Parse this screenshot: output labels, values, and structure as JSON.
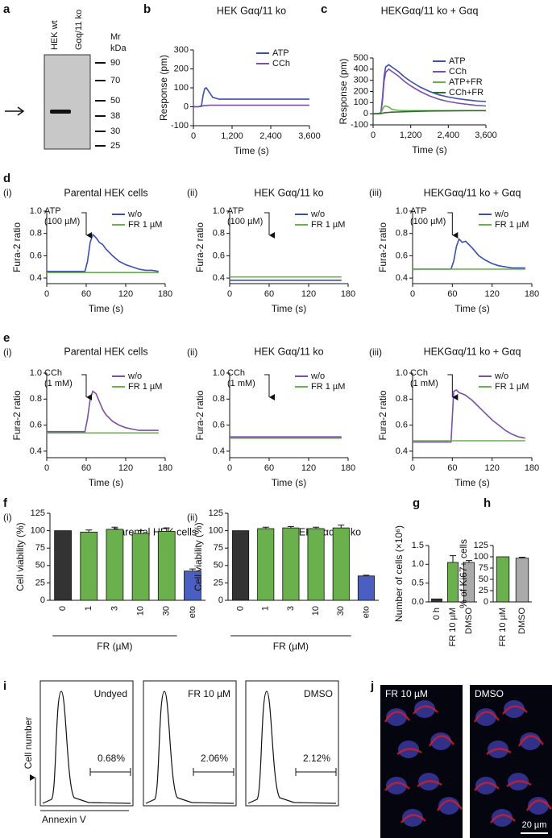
{
  "blot": {
    "panel": "a",
    "lanes": [
      "HEK wt",
      "Gαq/11 ko"
    ],
    "marker_title": [
      "Mr",
      "kDa"
    ],
    "markers": [
      90,
      70,
      50,
      38,
      30,
      25
    ]
  },
  "chart_data": [
    {
      "type": "line",
      "panel": "b",
      "title": "HEK Gαq/11 ko",
      "x_label": "Time (s)",
      "y_label": "Response (pm)",
      "x": [
        0,
        150,
        250,
        300,
        350,
        400,
        500,
        600,
        800,
        1000,
        1200,
        1500,
        1800,
        2100,
        2400,
        2700,
        3000,
        3300,
        3600
      ],
      "xlim": [
        0,
        3600
      ],
      "xticks": [
        0,
        {
          "value": 1200,
          "label": "1,200"
        },
        {
          "value": 2400,
          "label": "2,400"
        },
        {
          "value": 3600,
          "label": "3,600"
        }
      ],
      "ylim": [
        -100,
        300
      ],
      "yticks": [
        -100,
        0,
        100,
        200,
        300
      ],
      "legend": "upper right",
      "series": [
        {
          "name": "ATP",
          "color": "#3a4fb0",
          "values": [
            0,
            0,
            5,
            60,
            95,
            100,
            75,
            50,
            40,
            40,
            40,
            40,
            40,
            40,
            40,
            40,
            40,
            40,
            40
          ]
        },
        {
          "name": "CCh",
          "color": "#7b4fa8",
          "values": [
            0,
            0,
            2,
            5,
            6,
            7,
            8,
            8,
            8,
            8,
            8,
            8,
            8,
            8,
            8,
            8,
            8,
            8,
            8
          ]
        }
      ]
    },
    {
      "type": "line",
      "panel": "c",
      "title": "HEKGαq/11 ko + Gαq",
      "x_label": "Time (s)",
      "y_label": "Response (pm)",
      "x": [
        0,
        150,
        250,
        300,
        350,
        400,
        500,
        600,
        800,
        1000,
        1200,
        1500,
        1800,
        2100,
        2400,
        2700,
        3000,
        3300,
        3600
      ],
      "xlim": [
        0,
        3600
      ],
      "xticks": [
        0,
        {
          "value": 1200,
          "label": "1,200"
        },
        {
          "value": 2400,
          "label": "2,400"
        },
        {
          "value": 3600,
          "label": "3,600"
        }
      ],
      "ylim": [
        -100,
        500
      ],
      "yticks": [
        -100,
        0,
        100,
        200,
        300,
        400,
        500
      ],
      "legend": "upper right",
      "series": [
        {
          "name": "ATP",
          "color": "#3a4fb0",
          "values": [
            0,
            0,
            10,
            150,
            330,
            420,
            440,
            420,
            380,
            330,
            290,
            240,
            200,
            170,
            150,
            135,
            125,
            115,
            110
          ]
        },
        {
          "name": "CCh",
          "color": "#7b4fa8",
          "values": [
            0,
            0,
            8,
            120,
            290,
            370,
            400,
            380,
            340,
            290,
            250,
            200,
            160,
            130,
            110,
            95,
            85,
            75,
            70
          ]
        },
        {
          "name": "ATP+FR",
          "color": "#6ab04c",
          "values": [
            0,
            0,
            5,
            40,
            65,
            70,
            60,
            40,
            30,
            28,
            28,
            28,
            28,
            28,
            28,
            28,
            28,
            28,
            28
          ]
        },
        {
          "name": "CCh+FR",
          "color": "#2e6b2e",
          "values": [
            0,
            0,
            2,
            5,
            8,
            10,
            12,
            14,
            16,
            18,
            20,
            22,
            24,
            25,
            26,
            27,
            28,
            28,
            28
          ]
        }
      ]
    },
    {
      "type": "line",
      "panel": "d",
      "subpanel": "(i)",
      "title": "Parental HEK cells",
      "x_label": "Time (s)",
      "y_label": "Fura-2 ratio",
      "annotation": [
        "ATP",
        "(100 µM)"
      ],
      "x": [
        0,
        10,
        20,
        30,
        40,
        50,
        58,
        62,
        66,
        70,
        75,
        80,
        85,
        90,
        100,
        110,
        120,
        130,
        140,
        150,
        160,
        170
      ],
      "xlim": [
        0,
        180
      ],
      "xticks": [
        0,
        60,
        120,
        180
      ],
      "ylim": [
        0.35,
        1.0
      ],
      "yticks": [
        0.4,
        0.6,
        0.8,
        {
          "value": 1,
          "label": "1.0"
        }
      ],
      "legend": "upper right",
      "series": [
        {
          "name": "w/o",
          "color": "#3a4fb0",
          "values": [
            0.46,
            0.46,
            0.46,
            0.46,
            0.46,
            0.46,
            0.46,
            0.55,
            0.72,
            0.79,
            0.76,
            0.72,
            0.7,
            0.66,
            0.6,
            0.55,
            0.52,
            0.5,
            0.48,
            0.47,
            0.47,
            0.46
          ]
        },
        {
          "name": "FR 1 µM",
          "color": "#6ab04c",
          "values": [
            0.45,
            0.45,
            0.45,
            0.45,
            0.45,
            0.45,
            0.45,
            0.45,
            0.45,
            0.45,
            0.45,
            0.45,
            0.45,
            0.45,
            0.45,
            0.45,
            0.45,
            0.45,
            0.45,
            0.45,
            0.45,
            0.45
          ]
        }
      ]
    },
    {
      "type": "line",
      "subpanel": "(ii)",
      "title": "HEK Gαq/11 ko",
      "x_label": "Time (s)",
      "y_label": "Fura-2 ratio",
      "annotation": [
        "ATP",
        "(100 µM)"
      ],
      "x": [
        0,
        10,
        20,
        30,
        40,
        50,
        58,
        62,
        66,
        70,
        75,
        80,
        85,
        90,
        100,
        110,
        120,
        130,
        140,
        150,
        160,
        170
      ],
      "xlim": [
        0,
        180
      ],
      "xticks": [
        0,
        60,
        120,
        180
      ],
      "ylim": [
        0.35,
        1.0
      ],
      "yticks": [
        0.4,
        0.6,
        0.8,
        {
          "value": 1,
          "label": "1.0"
        }
      ],
      "legend": "upper right",
      "series": [
        {
          "name": "w/o",
          "color": "#3a4fb0",
          "values": [
            0.38,
            0.38,
            0.38,
            0.38,
            0.38,
            0.38,
            0.38,
            0.38,
            0.38,
            0.38,
            0.38,
            0.38,
            0.38,
            0.38,
            0.38,
            0.38,
            0.38,
            0.38,
            0.38,
            0.38,
            0.38,
            0.38
          ]
        },
        {
          "name": "FR 1 µM",
          "color": "#6ab04c",
          "values": [
            0.41,
            0.41,
            0.41,
            0.41,
            0.41,
            0.41,
            0.41,
            0.41,
            0.41,
            0.41,
            0.41,
            0.41,
            0.41,
            0.41,
            0.41,
            0.41,
            0.41,
            0.41,
            0.41,
            0.41,
            0.41,
            0.41
          ]
        }
      ]
    },
    {
      "type": "line",
      "subpanel": "(iii)",
      "title": "HEKGαq/11 ko + Gαq",
      "x_label": "Time (s)",
      "y_label": "Fura-2 ratio",
      "annotation": [
        "ATP",
        "(100 µM)"
      ],
      "x": [
        0,
        10,
        20,
        30,
        40,
        50,
        58,
        62,
        66,
        70,
        75,
        80,
        85,
        90,
        100,
        110,
        120,
        130,
        140,
        150,
        160,
        170
      ],
      "xlim": [
        0,
        180
      ],
      "xticks": [
        0,
        60,
        120,
        180
      ],
      "ylim": [
        0.35,
        1.0
      ],
      "yticks": [
        0.4,
        0.6,
        0.8,
        {
          "value": 1,
          "label": "1.0"
        }
      ],
      "legend": "upper right",
      "series": [
        {
          "name": "w/o",
          "color": "#3a4fb0",
          "values": [
            0.48,
            0.48,
            0.48,
            0.48,
            0.48,
            0.48,
            0.48,
            0.55,
            0.68,
            0.75,
            0.72,
            0.73,
            0.7,
            0.67,
            0.6,
            0.56,
            0.53,
            0.51,
            0.5,
            0.49,
            0.49,
            0.49
          ]
        },
        {
          "name": "FR 1 µM",
          "color": "#6ab04c",
          "values": [
            0.48,
            0.48,
            0.48,
            0.48,
            0.48,
            0.48,
            0.48,
            0.48,
            0.48,
            0.48,
            0.48,
            0.48,
            0.48,
            0.48,
            0.48,
            0.48,
            0.48,
            0.48,
            0.48,
            0.48,
            0.48,
            0.48
          ]
        }
      ]
    },
    {
      "type": "line",
      "panel": "e",
      "subpanel": "(i)",
      "title": "Parental HEK cells",
      "x_label": "Time (s)",
      "y_label": "Fura-2 ratio",
      "annotation": [
        "CCh",
        "(1 mM)"
      ],
      "x": [
        0,
        10,
        20,
        30,
        40,
        50,
        58,
        62,
        66,
        70,
        75,
        80,
        85,
        90,
        100,
        110,
        120,
        130,
        140,
        150,
        160,
        170
      ],
      "xlim": [
        0,
        180
      ],
      "xticks": [
        0,
        60,
        120,
        180
      ],
      "ylim": [
        0.35,
        1.0
      ],
      "yticks": [
        0.4,
        0.6,
        0.8,
        {
          "value": 1,
          "label": "1.0"
        }
      ],
      "legend": "upper right",
      "series": [
        {
          "name": "w/o",
          "color": "#7b4fa8",
          "values": [
            0.55,
            0.55,
            0.55,
            0.55,
            0.55,
            0.55,
            0.55,
            0.65,
            0.8,
            0.86,
            0.84,
            0.78,
            0.72,
            0.68,
            0.63,
            0.6,
            0.58,
            0.57,
            0.56,
            0.56,
            0.56,
            0.56
          ]
        },
        {
          "name": "FR 1 µM",
          "color": "#6ab04c",
          "values": [
            0.54,
            0.54,
            0.54,
            0.54,
            0.54,
            0.54,
            0.54,
            0.54,
            0.54,
            0.54,
            0.54,
            0.54,
            0.54,
            0.54,
            0.54,
            0.54,
            0.54,
            0.54,
            0.54,
            0.54,
            0.54,
            0.54
          ]
        }
      ]
    },
    {
      "type": "line",
      "subpanel": "(ii)",
      "title": "HEK Gαq/11 ko",
      "x_label": "Time (s)",
      "y_label": "Fura-2 ratio",
      "annotation": [
        "CCh",
        "(1 mM)"
      ],
      "x": [
        0,
        10,
        20,
        30,
        40,
        50,
        58,
        62,
        66,
        70,
        75,
        80,
        85,
        90,
        100,
        110,
        120,
        130,
        140,
        150,
        160,
        170
      ],
      "xlim": [
        0,
        180
      ],
      "xticks": [
        0,
        60,
        120,
        180
      ],
      "ylim": [
        0.35,
        1.0
      ],
      "yticks": [
        0.4,
        0.6,
        0.8,
        {
          "value": 1,
          "label": "1.0"
        }
      ],
      "legend": "upper right",
      "series": [
        {
          "name": "w/o",
          "color": "#7b4fa8",
          "values": [
            0.51,
            0.51,
            0.51,
            0.51,
            0.51,
            0.51,
            0.51,
            0.51,
            0.51,
            0.51,
            0.51,
            0.51,
            0.51,
            0.51,
            0.51,
            0.51,
            0.51,
            0.51,
            0.51,
            0.51,
            0.51,
            0.51
          ]
        },
        {
          "name": "FR 1 µM",
          "color": "#6ab04c",
          "values": [
            0.5,
            0.5,
            0.5,
            0.5,
            0.5,
            0.5,
            0.5,
            0.5,
            0.5,
            0.5,
            0.5,
            0.5,
            0.5,
            0.5,
            0.5,
            0.5,
            0.5,
            0.5,
            0.5,
            0.5,
            0.5,
            0.5
          ]
        }
      ]
    },
    {
      "type": "line",
      "subpanel": "(iii)",
      "title": "HEKGαq/11 ko + Gαq",
      "x_label": "Time (s)",
      "y_label": "Fura-2 ratio",
      "annotation": [
        "CCh",
        "(1 mM)"
      ],
      "x": [
        0,
        10,
        20,
        30,
        40,
        50,
        58,
        62,
        66,
        70,
        75,
        80,
        85,
        90,
        100,
        110,
        120,
        130,
        140,
        150,
        160,
        170
      ],
      "xlim": [
        0,
        180
      ],
      "xticks": [
        0,
        60,
        120,
        180
      ],
      "ylim": [
        0.35,
        1.0
      ],
      "yticks": [
        0.4,
        0.6,
        0.8,
        {
          "value": 1,
          "label": "1.0"
        }
      ],
      "legend": "upper right",
      "series": [
        {
          "name": "w/o",
          "color": "#7b4fa8",
          "values": [
            0.47,
            0.47,
            0.47,
            0.47,
            0.47,
            0.47,
            0.47,
            0.86,
            0.87,
            0.85,
            0.84,
            0.83,
            0.81,
            0.79,
            0.74,
            0.69,
            0.64,
            0.6,
            0.56,
            0.53,
            0.51,
            0.5
          ]
        },
        {
          "name": "FR 1 µM",
          "color": "#6ab04c",
          "values": [
            0.48,
            0.48,
            0.48,
            0.48,
            0.48,
            0.48,
            0.48,
            0.48,
            0.48,
            0.48,
            0.48,
            0.48,
            0.48,
            0.48,
            0.48,
            0.48,
            0.48,
            0.48,
            0.48,
            0.48,
            0.48,
            0.48
          ]
        }
      ]
    },
    {
      "type": "bar",
      "panel": "f",
      "subpanel": "(i)",
      "title": "Parental HEK cells",
      "y_label": "Cell viability (%)",
      "group_label": "FR (µM)",
      "categories": [
        "0",
        "1",
        "3",
        "10",
        "30",
        "eto"
      ],
      "values": [
        100,
        98,
        102,
        96,
        99,
        42
      ],
      "errors": [
        0,
        3,
        3,
        4,
        5,
        3
      ],
      "colors": [
        "#333333",
        "#6ab04c",
        "#6ab04c",
        "#6ab04c",
        "#6ab04c",
        "#4a5fc1"
      ],
      "ylim": [
        0,
        125
      ],
      "yticks": [
        0,
        25,
        50,
        75,
        100,
        125
      ]
    },
    {
      "type": "bar",
      "subpanel": "(ii)",
      "title": "HEK Gαq/11 ko",
      "y_label": "Cell viability (%)",
      "group_label": "FR (µM)",
      "categories": [
        "0",
        "1",
        "3",
        "10",
        "30",
        "eto"
      ],
      "values": [
        100,
        103,
        104,
        103,
        104,
        35
      ],
      "errors": [
        0,
        2,
        2,
        2,
        4,
        1
      ],
      "colors": [
        "#333333",
        "#6ab04c",
        "#6ab04c",
        "#6ab04c",
        "#6ab04c",
        "#4a5fc1"
      ],
      "ylim": [
        0,
        125
      ],
      "yticks": [
        0,
        25,
        50,
        75,
        100,
        125
      ]
    },
    {
      "type": "bar",
      "panel": "g",
      "y_label": "Number of cells (×10⁶)",
      "categories": [
        "0 h",
        "FR 10 µM",
        "DMSO"
      ],
      "values": [
        0.08,
        1.05,
        1.05
      ],
      "errors": [
        0,
        0.18,
        0.05
      ],
      "colors": [
        "#333333",
        "#6ab04c",
        "#aaaaaa"
      ],
      "ylim": [
        0,
        1.5
      ],
      "yticks": [
        {
          "value": 0,
          "label": "0.0"
        },
        0.5,
        {
          "value": 1,
          "label": "1.0"
        },
        1.5
      ]
    },
    {
      "type": "bar",
      "panel": "h",
      "y_label": "% of Ki67+ cells",
      "categories": [
        "FR 10 µM",
        "DMSO"
      ],
      "values": [
        100,
        97
      ],
      "errors": [
        0,
        2
      ],
      "colors": [
        "#6ab04c",
        "#aaaaaa"
      ],
      "ylim": [
        0,
        125
      ],
      "yticks": [
        0,
        25,
        50,
        75,
        100,
        125
      ]
    }
  ],
  "flow": {
    "panel": "i",
    "y_label": "Cell number",
    "x_label": "Annexin V",
    "plots": [
      {
        "label": "Undyed",
        "gate": "0.68%"
      },
      {
        "label": "FR 10 µM",
        "gate": "2.06%"
      },
      {
        "label": "DMSO",
        "gate": "2.12%"
      }
    ]
  },
  "images": {
    "panel": "j",
    "labels": [
      "FR 10 µM",
      "DMSO"
    ],
    "scale_bar": "20 µm"
  }
}
